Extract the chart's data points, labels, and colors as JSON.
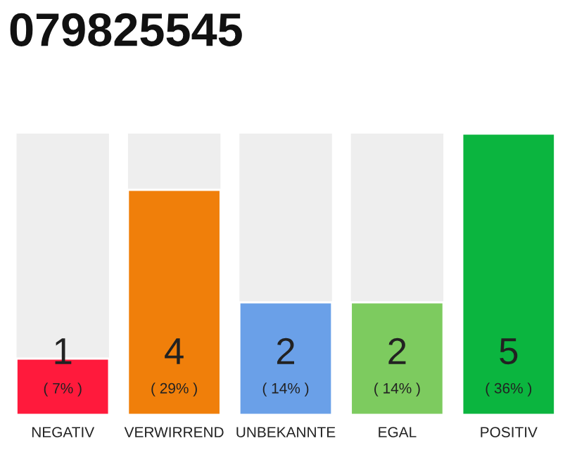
{
  "chart_data": {
    "type": "bar",
    "title": "079825545",
    "categories": [
      "NEGATIV",
      "VERWIRREND",
      "UNBEKANNTE",
      "EGAL",
      "POSITIV"
    ],
    "values": [
      1,
      4,
      2,
      2,
      5
    ],
    "colors": [
      "#ff1a3c",
      "#f07f0a",
      "#6aa0e8",
      "#7dcb5f",
      "#0bb53f"
    ],
    "value_labels": [
      "1\n( 7% )",
      "4\n( 29% )",
      "2\n( 14% )",
      "2\n( 14% )",
      "5\n( 36% )"
    ],
    "ylim": [
      0,
      5
    ],
    "tick_labels": "x"
  }
}
